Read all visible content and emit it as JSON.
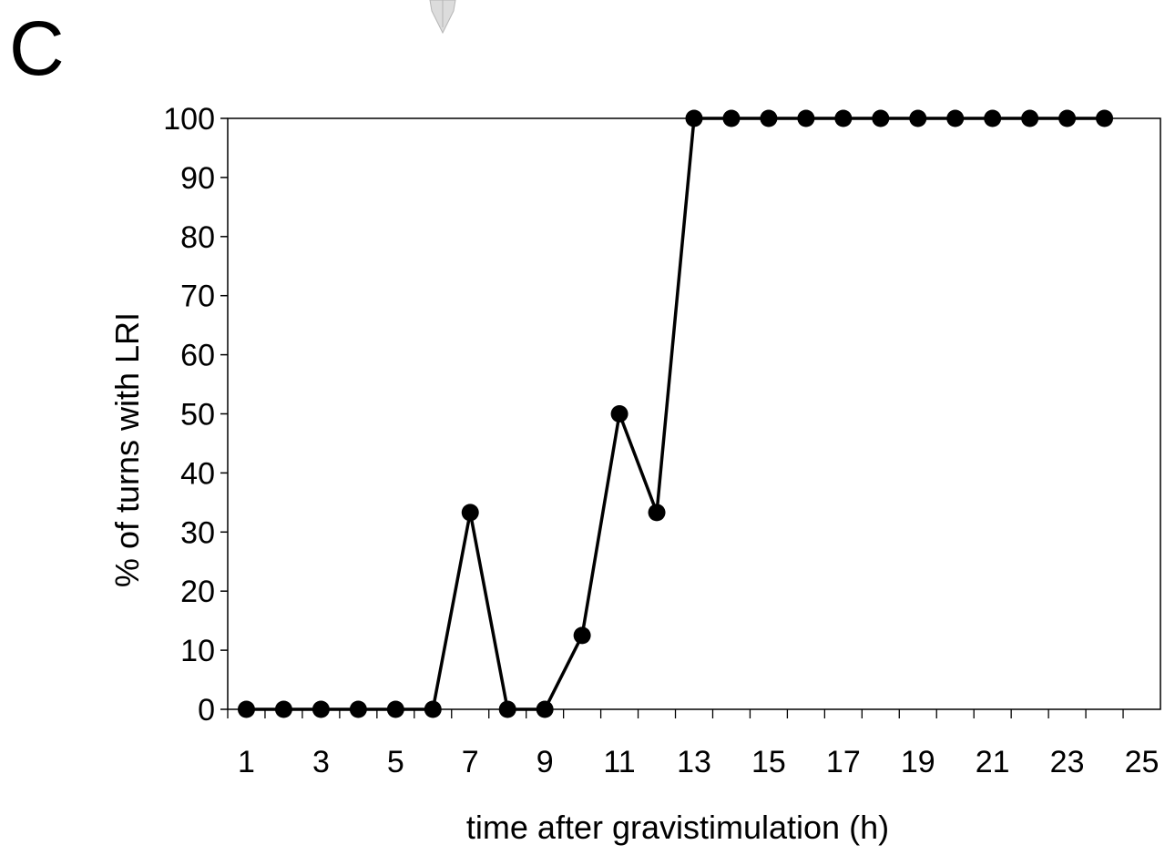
{
  "panel_label": "C",
  "chart_data": {
    "type": "line",
    "title": "",
    "xlabel": "time after gravistimulation (h)",
    "ylabel": "% of turns with LRI",
    "xlim": [
      0.5,
      25.5
    ],
    "ylim": [
      0,
      100
    ],
    "x_ticks": [
      1,
      3,
      5,
      7,
      9,
      11,
      13,
      15,
      17,
      19,
      21,
      23,
      25
    ],
    "y_ticks": [
      0,
      10,
      20,
      30,
      40,
      50,
      60,
      70,
      80,
      90,
      100
    ],
    "grid": false,
    "legend": "none",
    "series": [
      {
        "x": [
          1,
          2,
          3,
          4,
          5,
          6,
          7,
          8,
          9,
          10,
          11,
          12,
          13,
          14,
          15,
          16,
          17,
          18,
          19,
          20,
          21,
          22,
          23,
          24
        ],
        "y": [
          0,
          0,
          0,
          0,
          0,
          0,
          33.3,
          0,
          0,
          12.5,
          50,
          33.3,
          100,
          100,
          100,
          100,
          100,
          100,
          100,
          100,
          100,
          100,
          100,
          100
        ],
        "color": "#000000",
        "marker": "circle"
      }
    ]
  }
}
